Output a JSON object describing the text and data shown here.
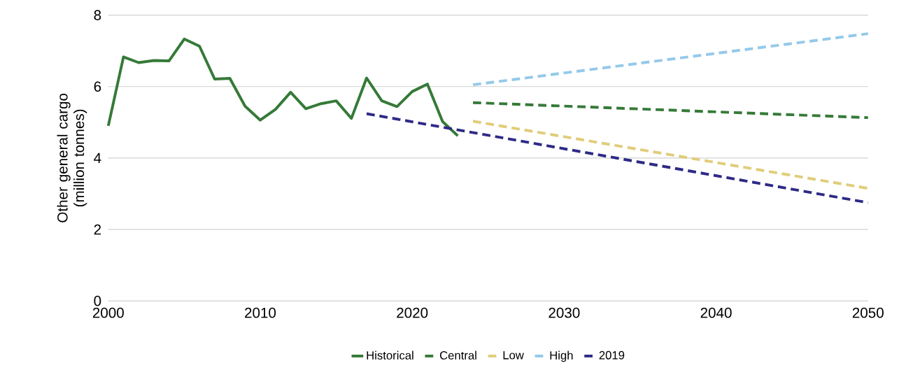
{
  "chart_data": {
    "type": "line",
    "ylabel": "Other general cargo (million tonnes)",
    "xlim": [
      2000,
      2050
    ],
    "xticks": [
      2000,
      2010,
      2020,
      2030,
      2040,
      2050
    ],
    "ylim": [
      0,
      8
    ],
    "yticks": [
      0,
      2,
      4,
      6,
      8
    ],
    "grid": "y",
    "legend": "bottom",
    "marker": "none",
    "series": [
      {
        "name": "Historical",
        "color": "#357a38",
        "line_style": "solid",
        "x": [
          2000,
          2001,
          2002,
          2003,
          2004,
          2005,
          2006,
          2007,
          2008,
          2009,
          2010,
          2011,
          2012,
          2013,
          2014,
          2015,
          2016,
          2017,
          2018,
          2019,
          2020,
          2021,
          2022,
          2023
        ],
        "values": [
          4.9,
          6.83,
          6.67,
          6.73,
          6.72,
          7.33,
          7.13,
          6.21,
          6.23,
          5.45,
          5.06,
          5.36,
          5.84,
          5.38,
          5.52,
          5.6,
          5.11,
          6.24,
          5.6,
          5.44,
          5.86,
          6.07,
          5.02,
          4.62
        ]
      },
      {
        "name": "Central",
        "color": "#357a38",
        "line_style": "dashed",
        "x": [
          2024,
          2050
        ],
        "values": [
          5.55,
          5.13
        ]
      },
      {
        "name": "Low",
        "color": "#e0cd7a",
        "line_style": "dashed",
        "x": [
          2024,
          2050
        ],
        "values": [
          5.03,
          3.15
        ]
      },
      {
        "name": "High",
        "color": "#94c9ea",
        "line_style": "dashed",
        "x": [
          2024,
          2050
        ],
        "values": [
          6.05,
          7.48
        ]
      },
      {
        "name": "2019",
        "color": "#2e2a86",
        "line_style": "dashed",
        "x": [
          2017,
          2050
        ],
        "values": [
          5.24,
          2.75
        ]
      }
    ]
  }
}
